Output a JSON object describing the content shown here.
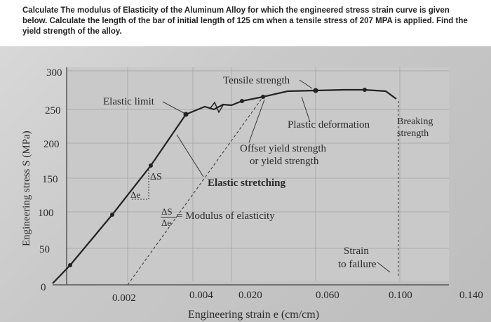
{
  "question": {
    "text": "Calculate The modulus of Elasticity of the Aluminum Alloy for which the engineered stress strain curve is given below. Calculate the length of the bar of initial length of 125 cm when a tensile stress of 207 MPA is applied. Find the yield strength of the alloy."
  },
  "chart_data": {
    "type": "line",
    "ylabel": "Engineering stress S (MPa)",
    "xlabel": "Engineering strain e (cm/cm)",
    "y_ticks": [
      "300",
      "250",
      "200",
      "150",
      "100",
      "50",
      "0"
    ],
    "x_ticks": [
      "0.002",
      "0.004",
      "0.020",
      "0.060",
      "0.100",
      "0.140"
    ],
    "annotations": {
      "tensile_strength": "Tensile strength",
      "elastic_limit": "Elastic limit",
      "plastic_deformation": "Plastic deformation",
      "breaking_strength_1": "Breaking",
      "breaking_strength_2": "strength",
      "offset_yield_1": "Offset yield strength",
      "offset_yield_2": "or yield strength",
      "elastic_stretching": "Elastic stretching",
      "delta_s": "ΔS",
      "delta_e": "Δe",
      "modulus_frac_top": "ΔS",
      "modulus_frac_bottom": "Δe",
      "modulus_text": "= Modulus of elasticity",
      "strain_failure_1": "Strain",
      "strain_failure_2": "to failure"
    },
    "series": [
      {
        "values_note": "curve",
        "x": [
          0,
          0.0005,
          0.001,
          0.0015,
          0.002,
          0.0025,
          0.003,
          0.004,
          0.02,
          0.04,
          0.06,
          0.08,
          0.1
        ],
        "y": [
          0,
          40,
          95,
          150,
          205,
          245,
          252,
          270,
          275,
          290,
          300,
          300,
          290
        ]
      }
    ],
    "ylim": [
      0,
      320
    ],
    "grid": true
  }
}
